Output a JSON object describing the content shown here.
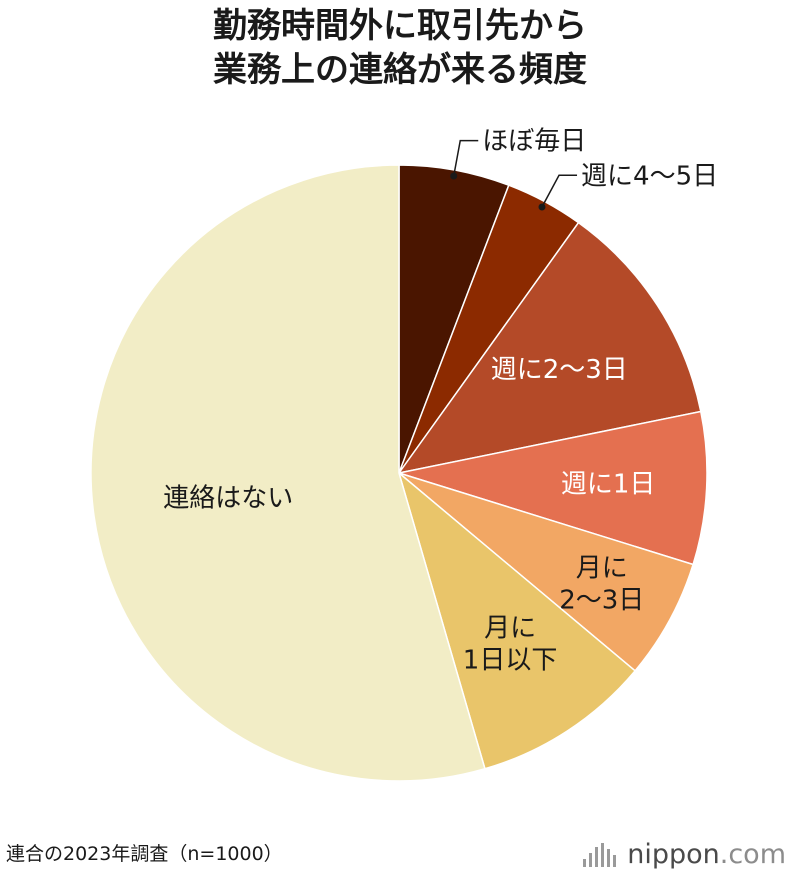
{
  "chart_data": {
    "type": "pie",
    "title_lines": [
      "勤務時間外に取引先から",
      "業務上の連絡が来る頻度"
    ],
    "slices": [
      {
        "label": "ほぼ毎日",
        "value": 5.8,
        "color": "#4a1500"
      },
      {
        "label": "週に4〜5日",
        "value": 4.1,
        "color": "#8c2a00"
      },
      {
        "label": "週に2〜3日",
        "value": 11.9,
        "color": "#b44a28"
      },
      {
        "label": "週に1日",
        "value": 8.0,
        "color": "#e47050"
      },
      {
        "label": "月に 2〜3日",
        "label_lines": [
          "月に",
          "2〜3日"
        ],
        "value": 6.3,
        "color": "#f2a764"
      },
      {
        "label": "月に 1日以下",
        "label_lines": [
          "月に",
          "1日以下"
        ],
        "value": 9.4,
        "color": "#e9c56a"
      },
      {
        "label": "連絡はない",
        "value": 54.5,
        "color": "#f2edc6"
      }
    ],
    "start": "12 o'clock, clockwise",
    "legend": "none (direct labels)"
  },
  "footer": {
    "source": "連合の2023年調査（n=1000）",
    "logo_brand": "nippon",
    "logo_tld": ".com"
  }
}
